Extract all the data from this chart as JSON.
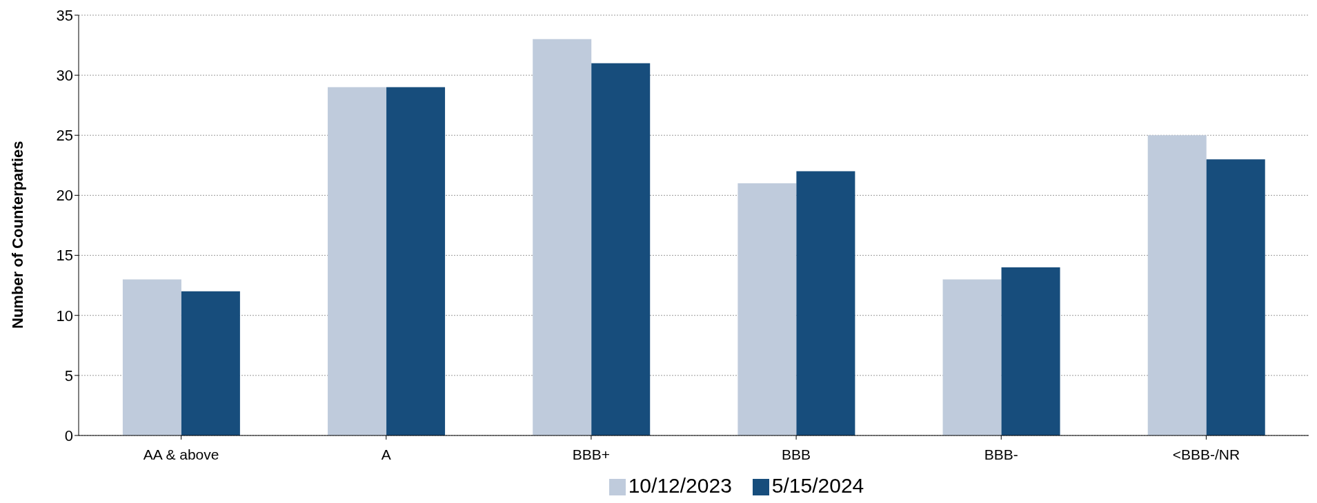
{
  "chart_data": {
    "type": "bar",
    "ylabel": "Number of Counterparties",
    "categories": [
      "AA & above",
      "A",
      "BBB+",
      "BBB",
      "BBB-",
      "<BBB-/NR"
    ],
    "series": [
      {
        "name": "10/12/2023",
        "color": "#bfcbdc",
        "values": [
          13,
          29,
          33,
          21,
          13,
          25
        ]
      },
      {
        "name": "5/15/2024",
        "color": "#174d7c",
        "values": [
          12,
          29,
          31,
          22,
          14,
          23
        ]
      }
    ],
    "ylim": [
      0,
      35
    ],
    "yticks": [
      0,
      5,
      10,
      15,
      20,
      25,
      30,
      35
    ],
    "grid": "y",
    "legend": "bottom"
  }
}
